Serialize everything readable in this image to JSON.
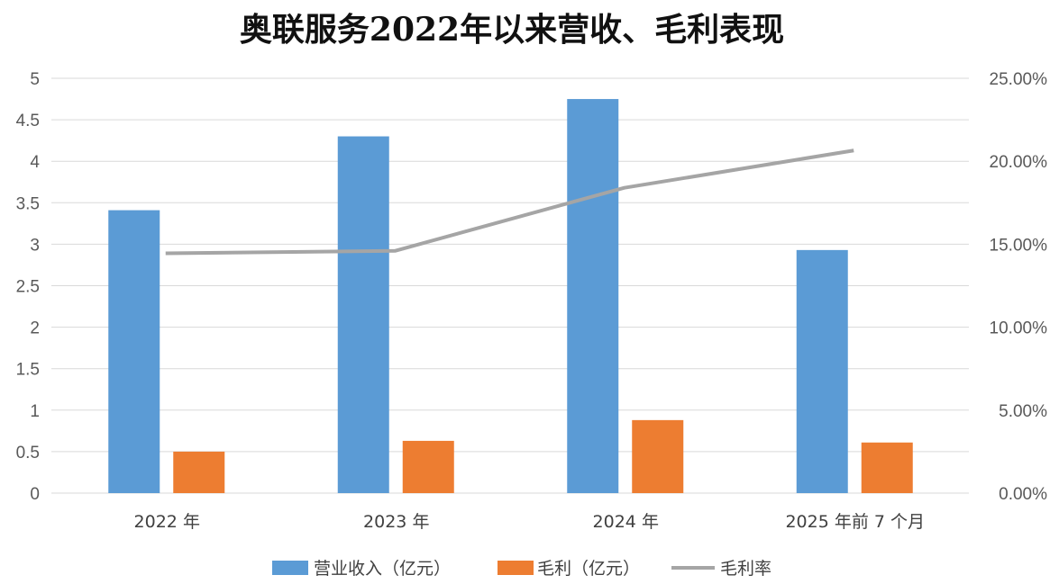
{
  "chart_data": {
    "type": "bar",
    "title": "奥联服务2022年以来营收、毛利表现",
    "categories": [
      "2022 年",
      "2023 年",
      "2024 年",
      "2025 年前 7 个月"
    ],
    "series": [
      {
        "name": "营业收入（亿元）",
        "kind": "bar",
        "axis": "left",
        "color": "#5b9bd5",
        "values": [
          3.41,
          4.3,
          4.75,
          2.93
        ]
      },
      {
        "name": "毛利（亿元）",
        "kind": "bar",
        "axis": "left",
        "color": "#ed7d31",
        "values": [
          0.5,
          0.63,
          0.88,
          0.61
        ]
      },
      {
        "name": "毛利率",
        "kind": "line",
        "axis": "right",
        "color": "#a5a5a5",
        "values": [
          0.1445,
          0.146,
          0.184,
          0.2065
        ]
      }
    ],
    "y_left": {
      "ylim": [
        0,
        5
      ],
      "ticks": [
        "0",
        "0.5",
        "1",
        "1.5",
        "2",
        "2.5",
        "3",
        "3.5",
        "4",
        "4.5",
        "5"
      ]
    },
    "y_right": {
      "ylim": [
        0,
        0.25
      ],
      "ticks": [
        "0.00%",
        "5.00%",
        "10.00%",
        "15.00%",
        "20.00%",
        "25.00%"
      ]
    },
    "grid": true,
    "legend_position": "bottom"
  }
}
